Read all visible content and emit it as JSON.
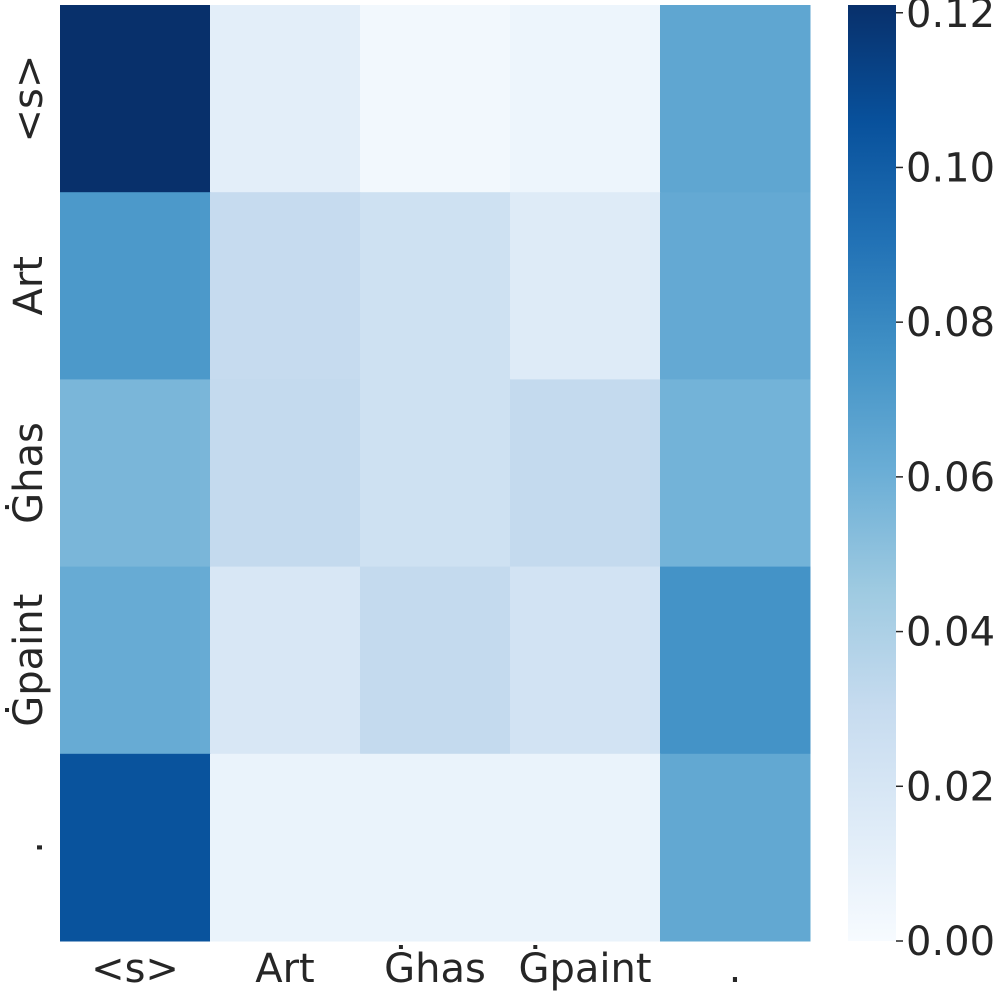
{
  "chart_data": {
    "type": "heatmap",
    "title": "",
    "xlabel": "",
    "ylabel": "",
    "x_categories": [
      "<s>",
      "Art",
      "Ġhas",
      "Ġpaint",
      "."
    ],
    "y_categories": [
      "<s>",
      "Art",
      "Ġhas",
      "Ġpaint",
      "."
    ],
    "values": [
      [
        0.121,
        0.012,
        0.003,
        0.006,
        0.065
      ],
      [
        0.072,
        0.03,
        0.025,
        0.015,
        0.063
      ],
      [
        0.056,
        0.031,
        0.025,
        0.031,
        0.058
      ],
      [
        0.062,
        0.019,
        0.031,
        0.023,
        0.075
      ],
      [
        0.105,
        0.008,
        0.008,
        0.008,
        0.064
      ]
    ],
    "colormap": "Blues",
    "colorbar": {
      "range": [
        0.0,
        0.121
      ],
      "ticks": [
        "0.00",
        "0.02",
        "0.04",
        "0.06",
        "0.08",
        "0.10",
        "0.12"
      ]
    },
    "grid": false
  }
}
